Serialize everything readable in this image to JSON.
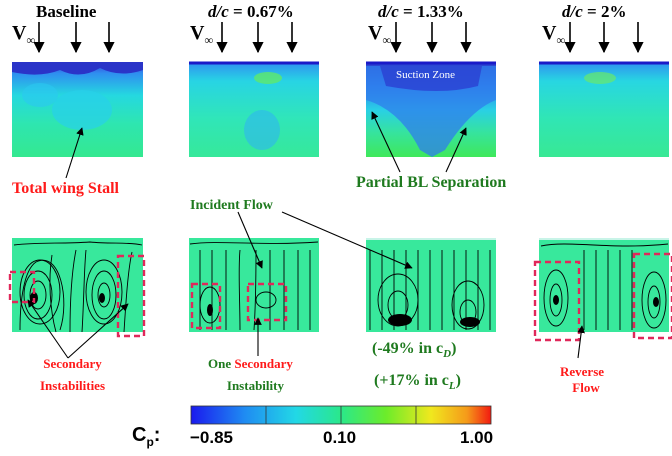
{
  "headers": {
    "baseline": "Baseline",
    "d1_prefix": "d/c",
    "d1_value": " = 0.67%",
    "d2_prefix": "d/c",
    "d2_value": " = 1.33%",
    "d3_prefix": "d/c",
    "d3_value": " = 2%"
  },
  "freestream_label": "V",
  "freestream_sub": "∞",
  "annotations": {
    "suction_zone": "Suction Zone",
    "total_stall": "Total wing Stall",
    "partial_bl": "Partial BL Separation",
    "incident_flow": "Incident Flow",
    "secondary_instabilities_1": "Secondary",
    "secondary_instabilities_2": "Instabilities",
    "one_word": "One ",
    "one_secondary": "Secondary",
    "instability": "Instability",
    "cd_change": "(-49% in c",
    "cd_sub": "D",
    "cd_close": ")",
    "cl_change": "(+17% in c",
    "cl_sub": "L",
    "cl_close": ")",
    "reverse": "Reverse",
    "flow": "Flow"
  },
  "colorbar": {
    "label": "C",
    "label_sub": "p",
    "colon": ":",
    "min_label": "−0.85",
    "mid_label": "0.10",
    "max_label": "1.00"
  }
}
